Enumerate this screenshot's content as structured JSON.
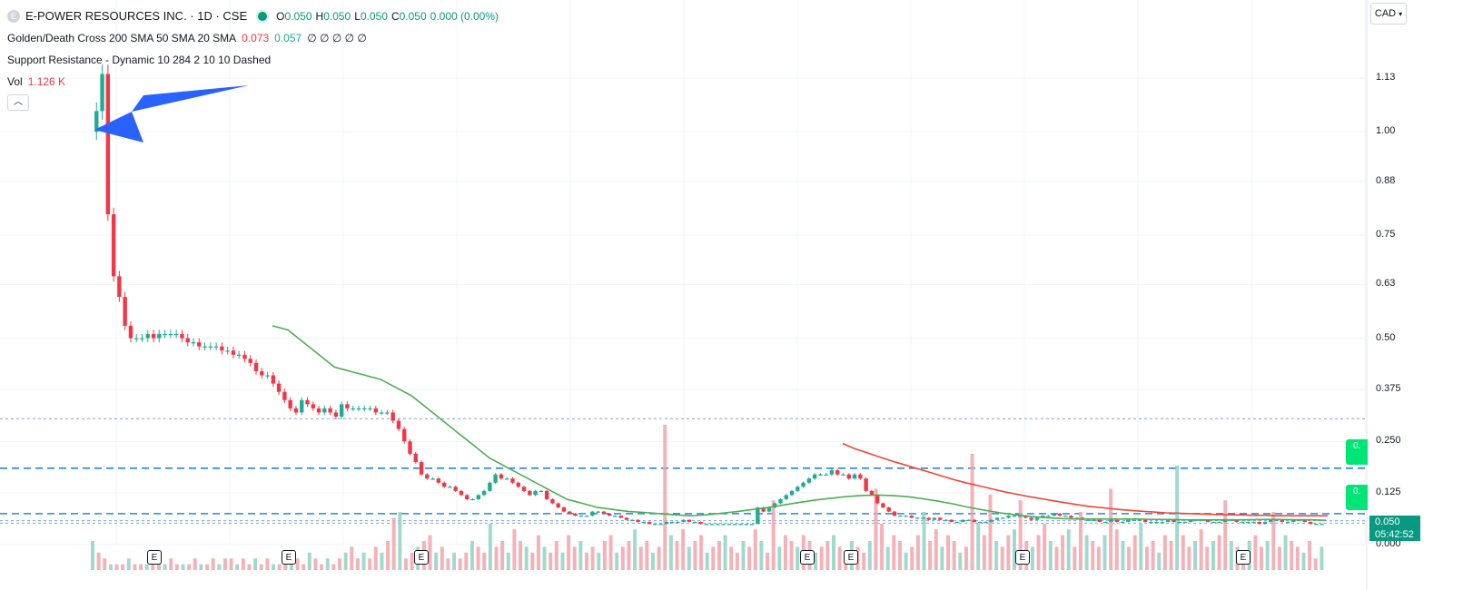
{
  "symbol": {
    "badge": "E",
    "title": "E-POWER RESOURCES INC. · 1D · CSE",
    "ohlc": [
      {
        "k": "O",
        "v": "0.050"
      },
      {
        "k": "H",
        "v": "0.050"
      },
      {
        "k": "L",
        "v": "0.050"
      },
      {
        "k": "C",
        "v": "0.050"
      },
      {
        "k": "",
        "v": "0.000 (0.00%)"
      }
    ]
  },
  "indicators": {
    "golden_cross": {
      "name": "Golden/Death Cross 200 SMA 50 SMA 20 SMA",
      "v1": "0.073",
      "v2": "0.057",
      "rest": "∅ ∅ ∅ ∅ ∅"
    },
    "support_resistance": {
      "name": "Support Resistance - Dynamic 10 284 2 10 10 Dashed"
    },
    "volume": {
      "name": "Vol",
      "value": "1.126 K"
    }
  },
  "currency": {
    "label": "CAD"
  },
  "price_axis": {
    "ticks": [
      "1.13",
      "1.00",
      "0.88",
      "0.75",
      "0.63",
      "0.50",
      "0.375",
      "0.250",
      "0.125",
      "0.000"
    ],
    "last_price": "0.050",
    "countdown": "05:42:52",
    "side_labels": [
      "0.",
      "0."
    ]
  },
  "earnings_marker": "E",
  "colors": {
    "up": "#22ab94",
    "down": "#f23645",
    "sma50": "#4caf50",
    "sma200": "#f44336",
    "level": "#2196f3",
    "arrow": "#2962ff"
  },
  "chart_data": {
    "type": "candlestick",
    "ylim": [
      0,
      1.2
    ],
    "y_ticks": [
      1.13,
      1.0,
      0.88,
      0.75,
      0.63,
      0.5,
      0.375,
      0.25,
      0.125,
      0.0
    ],
    "support_resistance_levels": [
      0.305,
      0.185,
      0.075,
      0.058,
      0.052
    ],
    "price": [
      1.0,
      1.05,
      1.14,
      0.8,
      0.65,
      0.6,
      0.53,
      0.5,
      0.5,
      0.5,
      0.51,
      0.5,
      0.51,
      0.51,
      0.51,
      0.51,
      0.5,
      0.49,
      0.49,
      0.48,
      0.48,
      0.48,
      0.48,
      0.47,
      0.47,
      0.46,
      0.46,
      0.45,
      0.44,
      0.42,
      0.41,
      0.41,
      0.39,
      0.37,
      0.35,
      0.33,
      0.32,
      0.35,
      0.34,
      0.33,
      0.32,
      0.33,
      0.32,
      0.31,
      0.34,
      0.33,
      0.33,
      0.33,
      0.33,
      0.33,
      0.32,
      0.32,
      0.32,
      0.3,
      0.28,
      0.25,
      0.22,
      0.2,
      0.17,
      0.16,
      0.16,
      0.15,
      0.14,
      0.14,
      0.13,
      0.12,
      0.11,
      0.11,
      0.12,
      0.13,
      0.15,
      0.17,
      0.16,
      0.16,
      0.15,
      0.14,
      0.13,
      0.12,
      0.13,
      0.13,
      0.11,
      0.1,
      0.09,
      0.08,
      0.075,
      0.07,
      0.07,
      0.07,
      0.08,
      0.08,
      0.075,
      0.07,
      0.07,
      0.065,
      0.06,
      0.06,
      0.055,
      0.055,
      0.05,
      0.05,
      0.05,
      0.055,
      0.055,
      0.055,
      0.06,
      0.055,
      0.055,
      0.05,
      0.05,
      0.05,
      0.05,
      0.05,
      0.05,
      0.05,
      0.05,
      0.05,
      0.05,
      0.09,
      0.08,
      0.09,
      0.1,
      0.11,
      0.12,
      0.13,
      0.14,
      0.15,
      0.16,
      0.17,
      0.17,
      0.17,
      0.18,
      0.17,
      0.17,
      0.16,
      0.17,
      0.16,
      0.13,
      0.12,
      0.1,
      0.09,
      0.08,
      0.07,
      0.07,
      0.07,
      0.065,
      0.065,
      0.065,
      0.06,
      0.065,
      0.06,
      0.06,
      0.055,
      0.055,
      0.06,
      0.06,
      0.055,
      0.055,
      0.055,
      0.06,
      0.065,
      0.065,
      0.07,
      0.07,
      0.07,
      0.065,
      0.06,
      0.065,
      0.07,
      0.07,
      0.075,
      0.07,
      0.07,
      0.065,
      0.065,
      0.06,
      0.06,
      0.06,
      0.055,
      0.055,
      0.06,
      0.055,
      0.055,
      0.06,
      0.06,
      0.06,
      0.055,
      0.055,
      0.055,
      0.055,
      0.06,
      0.055,
      0.055,
      0.055,
      0.06,
      0.06,
      0.06,
      0.055,
      0.055,
      0.055,
      0.06,
      0.06,
      0.055,
      0.055,
      0.055,
      0.055,
      0.05,
      0.055,
      0.06,
      0.06,
      0.055,
      0.055,
      0.06,
      0.06,
      0.055,
      0.05,
      0.05,
      0.05
    ],
    "sma50": [
      0.53,
      0.52,
      0.49,
      0.46,
      0.43,
      0.42,
      0.41,
      0.4,
      0.38,
      0.36,
      0.33,
      0.3,
      0.27,
      0.24,
      0.21,
      0.19,
      0.17,
      0.15,
      0.13,
      0.11,
      0.1,
      0.09,
      0.085,
      0.08,
      0.078,
      0.075,
      0.072,
      0.07,
      0.072,
      0.076,
      0.08,
      0.085,
      0.09,
      0.096,
      0.102,
      0.108,
      0.112,
      0.116,
      0.119,
      0.12,
      0.119,
      0.116,
      0.111,
      0.105,
      0.098,
      0.09,
      0.083,
      0.077,
      0.072,
      0.068,
      0.065,
      0.063,
      0.062,
      0.062,
      0.062,
      0.062,
      0.062,
      0.061,
      0.061,
      0.06,
      0.06,
      0.06,
      0.06,
      0.06,
      0.061,
      0.061,
      0.06,
      0.06,
      0.059
    ],
    "sma200": [
      0.245,
      0.232,
      0.222,
      0.212,
      0.202,
      0.193,
      0.184,
      0.175,
      0.166,
      0.157,
      0.149,
      0.142,
      0.135,
      0.128,
      0.122,
      0.116,
      0.111,
      0.106,
      0.101,
      0.096,
      0.092,
      0.089,
      0.086,
      0.083,
      0.081,
      0.079,
      0.077,
      0.076,
      0.075,
      0.074,
      0.073,
      0.072,
      0.072,
      0.071,
      0.071,
      0.07,
      0.07,
      0.07,
      0.07,
      0.07
    ],
    "volume": [
      0.5,
      0.3,
      0.2,
      0.1,
      0.1,
      0.1,
      0.2,
      0.1,
      0.1,
      0.1,
      0.1,
      0.1,
      0.1,
      0.2,
      0.1,
      0.1,
      0.1,
      0.2,
      0.1,
      0.1,
      0.2,
      0.1,
      0.2,
      0.2,
      0.1,
      0.2,
      0.1,
      0.2,
      0.1,
      0.2,
      0.1,
      0.1,
      0.2,
      0.1,
      0.2,
      0.1,
      0.3,
      0.2,
      0.1,
      0.2,
      0.1,
      0.2,
      0.3,
      0.4,
      0.2,
      0.3,
      0.2,
      0.4,
      0.3,
      0.5,
      0.9,
      1.0,
      0.2,
      0.3,
      0.4,
      0.5,
      0.6,
      0.3,
      0.4,
      0.2,
      0.3,
      0.2,
      0.3,
      0.5,
      0.4,
      0.3,
      0.8,
      0.4,
      0.5,
      0.3,
      0.7,
      0.5,
      0.4,
      0.3,
      0.6,
      0.4,
      0.3,
      0.5,
      0.3,
      0.6,
      0.4,
      0.5,
      0.3,
      0.4,
      0.3,
      0.5,
      0.6,
      0.3,
      0.4,
      0.5,
      0.7,
      0.4,
      0.5,
      0.3,
      0.4,
      2.5,
      0.6,
      0.5,
      0.7,
      0.4,
      0.5,
      0.6,
      0.3,
      0.4,
      0.5,
      0.6,
      0.4,
      0.3,
      0.5,
      0.4,
      0.7,
      0.5,
      0.3,
      1.2,
      0.4,
      0.6,
      0.5,
      0.4,
      0.6,
      0.5,
      0.3,
      0.4,
      0.5,
      0.6,
      0.4,
      0.3,
      0.5,
      0.4,
      0.3,
      0.5,
      1.4,
      0.8,
      0.4,
      0.6,
      0.5,
      0.3,
      0.4,
      0.6,
      1.0,
      0.5,
      0.7,
      0.4,
      0.6,
      0.5,
      0.3,
      0.4,
      2.0,
      0.8,
      0.6,
      1.3,
      0.5,
      0.4,
      0.6,
      0.7,
      1.2,
      0.5,
      0.4,
      0.6,
      0.8,
      0.5,
      0.4,
      0.6,
      0.7,
      0.4,
      1.0,
      0.6,
      0.5,
      0.4,
      0.6,
      1.4,
      0.7,
      0.5,
      0.4,
      0.6,
      0.8,
      0.4,
      0.5,
      0.3,
      0.6,
      0.5,
      1.8,
      0.6,
      0.4,
      0.5,
      0.7,
      0.4,
      0.5,
      0.6,
      1.2,
      0.5,
      0.4,
      0.3,
      0.5,
      0.6,
      0.4,
      0.5,
      1.0,
      0.4,
      0.6,
      0.5,
      0.4,
      0.3,
      0.5,
      0.2,
      0.4
    ]
  }
}
